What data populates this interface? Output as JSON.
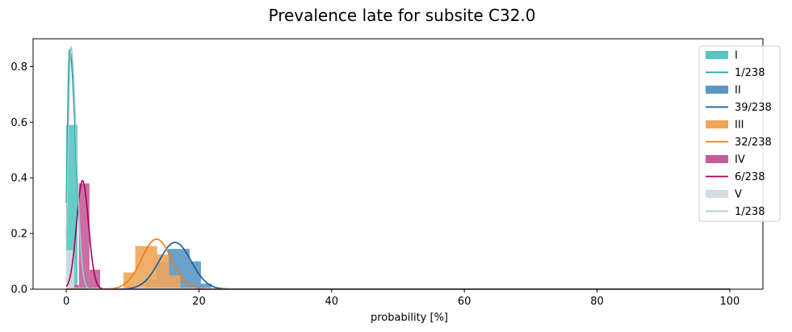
{
  "chart_data": {
    "type": "histogram",
    "title": "Prevalence late for subsite C32.0",
    "xlabel": "probability [%]",
    "ylabel": "",
    "xlim": [
      -5,
      105
    ],
    "ylim": [
      0,
      0.9
    ],
    "xticks": [
      0,
      20,
      40,
      60,
      80,
      100
    ],
    "yticks": [
      0.0,
      0.2,
      0.4,
      0.6,
      0.8
    ],
    "ytick_labels": [
      "0.0",
      "0.2",
      "0.4",
      "0.6",
      "0.8"
    ],
    "legend_position": "upper right",
    "series": [
      {
        "name": "I",
        "curve_label": "1/238",
        "bar_color": "#55c6c0",
        "line_color": "#1aa3a0",
        "bars": [
          [
            0.0,
            1.7,
            0.59
          ]
        ],
        "curve": {
          "kind": "gamma",
          "mode": 0.5,
          "peak": 0.86,
          "rise": 0.35,
          "fall": 0.9
        }
      },
      {
        "name": "II",
        "curve_label": "39/238",
        "bar_color": "#5b97c5",
        "line_color": "#0d5a9a",
        "bars": [
          [
            11.9,
            13.6,
            0.035
          ],
          [
            13.6,
            15.3,
            0.095
          ],
          [
            15.3,
            18.6,
            0.145
          ],
          [
            18.6,
            20.3,
            0.1
          ],
          [
            20.3,
            21.9,
            0.02
          ]
        ],
        "curve": {
          "kind": "normal",
          "mu": 16.4,
          "sigma": 2.4,
          "peak": 0.168
        }
      },
      {
        "name": "III",
        "curve_label": "32/238",
        "bar_color": "#f0a55a",
        "line_color": "#ee7c12",
        "bars": [
          [
            8.6,
            10.4,
            0.06
          ],
          [
            10.4,
            13.7,
            0.155
          ],
          [
            13.7,
            15.5,
            0.125
          ],
          [
            15.5,
            17.2,
            0.05
          ]
        ],
        "curve": {
          "kind": "normal",
          "mu": 13.6,
          "sigma": 2.25,
          "peak": 0.18
        }
      },
      {
        "name": "IV",
        "curve_label": "6/238",
        "bar_color": "#c45e9a",
        "line_color": "#a8005e",
        "bars": [
          [
            0.3,
            1.9,
            0.015
          ],
          [
            1.9,
            3.5,
            0.38
          ],
          [
            3.5,
            5.1,
            0.07
          ]
        ],
        "curve": {
          "kind": "normal",
          "mu": 2.45,
          "sigma": 0.9,
          "peak": 0.39
        }
      },
      {
        "name": "V",
        "curve_label": "1/238",
        "bar_color": "#d5dde4",
        "line_color": "#a9c8d2",
        "bars": [
          [
            0.0,
            1.2,
            0.14
          ],
          [
            1.2,
            100.0,
            0.005
          ]
        ],
        "curve": {
          "kind": "gamma",
          "mode": 0.7,
          "peak": 0.87,
          "rise": 0.4,
          "fall": 0.8
        }
      }
    ]
  }
}
